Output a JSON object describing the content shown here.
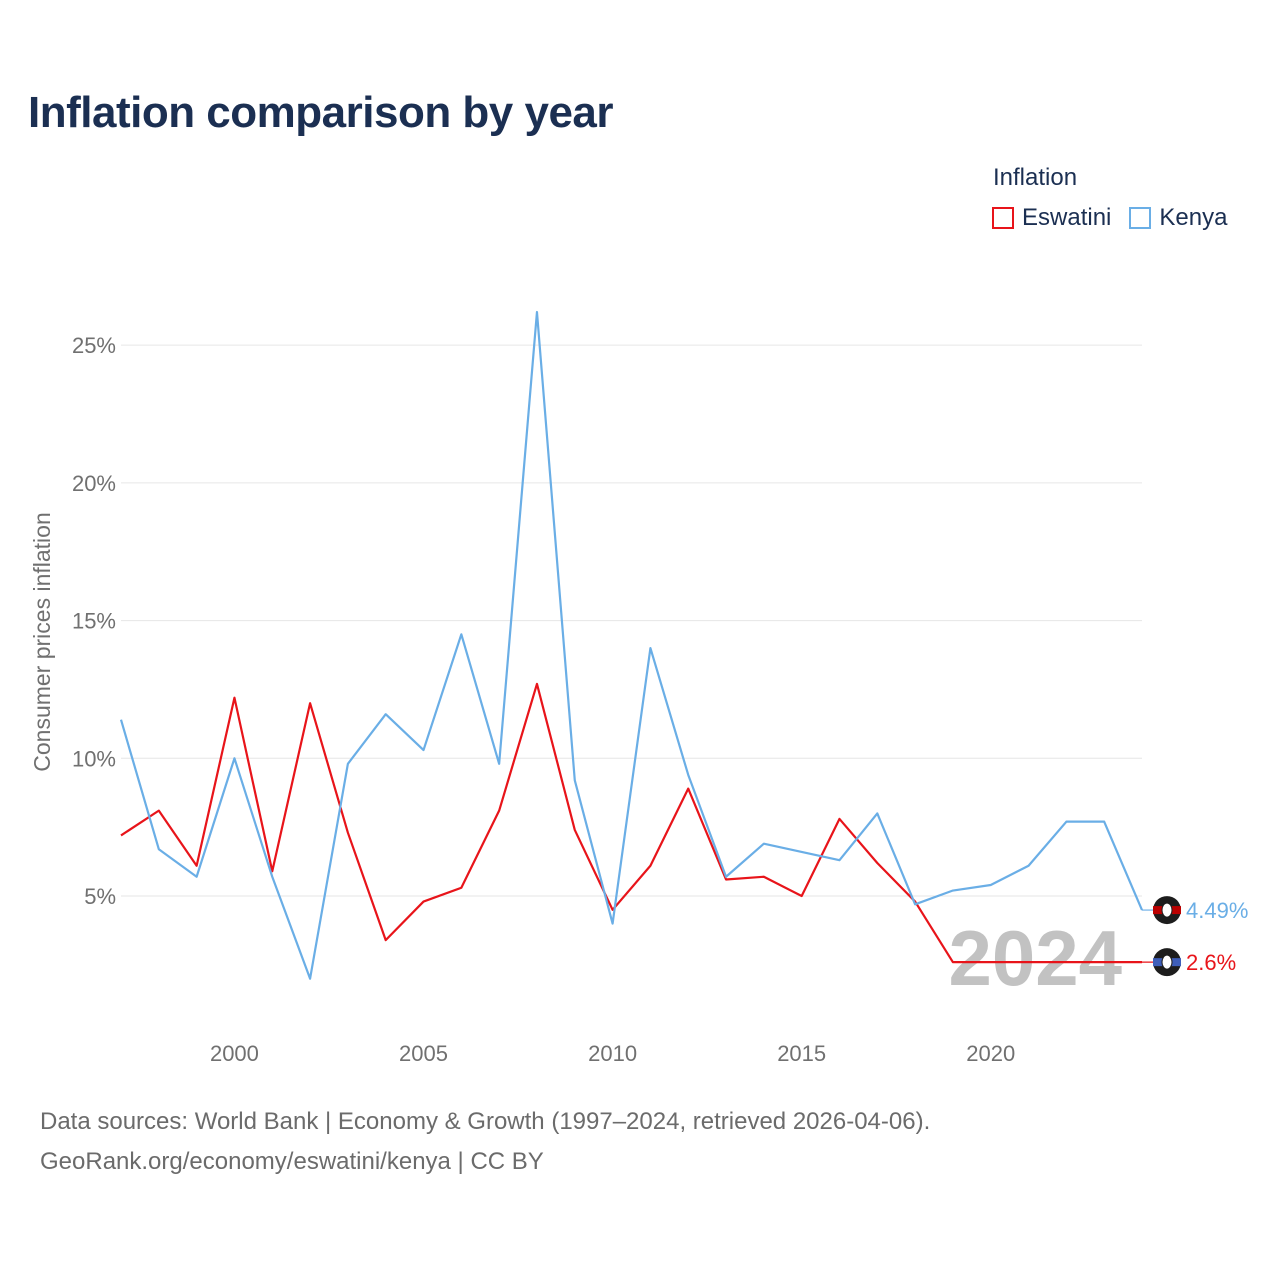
{
  "title": "Inflation comparison by year",
  "legend": {
    "title": "Inflation",
    "items": [
      {
        "label": "Eswatini",
        "color": "#e8141a"
      },
      {
        "label": "Kenya",
        "color": "#6aaee6"
      }
    ]
  },
  "footer": {
    "line1": "Data sources: World Bank | Economy & Growth (1997–2024, retrieved 2026-04-06).",
    "line2": "GeoRank.org/economy/eswatini/kenya | CC BY"
  },
  "chart_data": {
    "type": "line",
    "title": "Inflation comparison by year",
    "xlabel": "",
    "ylabel": "Consumer prices inflation",
    "xlim": [
      1997,
      2024
    ],
    "ylim": [
      0.5,
      27
    ],
    "x_ticks": [
      2000,
      2005,
      2010,
      2015,
      2020
    ],
    "y_ticks": [
      5,
      10,
      15,
      20,
      25
    ],
    "y_tick_labels": [
      "5%",
      "10%",
      "15%",
      "20%",
      "25%"
    ],
    "grid": true,
    "watermark_year": "2024",
    "x": [
      1997,
      1998,
      1999,
      2000,
      2001,
      2002,
      2003,
      2004,
      2005,
      2006,
      2007,
      2008,
      2009,
      2010,
      2011,
      2012,
      2013,
      2014,
      2015,
      2016,
      2017,
      2018,
      2019,
      2020,
      2021,
      2022,
      2023,
      2024
    ],
    "series": [
      {
        "name": "Eswatini",
        "color": "#e8141a",
        "end_label": "2.6%",
        "values": [
          7.2,
          8.1,
          6.1,
          12.2,
          5.9,
          12.0,
          7.3,
          3.4,
          4.8,
          5.3,
          8.1,
          12.7,
          7.4,
          4.5,
          6.1,
          8.9,
          5.6,
          5.7,
          5.0,
          7.8,
          6.2,
          4.8,
          2.6,
          2.6,
          2.6,
          2.6,
          2.6,
          2.6
        ]
      },
      {
        "name": "Kenya",
        "color": "#6aaee6",
        "end_label": "4.49%",
        "values": [
          11.4,
          6.7,
          5.7,
          10.0,
          5.7,
          2.0,
          9.8,
          11.6,
          10.3,
          14.5,
          9.8,
          26.2,
          9.2,
          4.0,
          14.0,
          9.4,
          5.7,
          6.9,
          6.6,
          6.3,
          8.0,
          4.7,
          5.2,
          5.4,
          6.1,
          7.7,
          7.7,
          4.49
        ]
      }
    ]
  }
}
